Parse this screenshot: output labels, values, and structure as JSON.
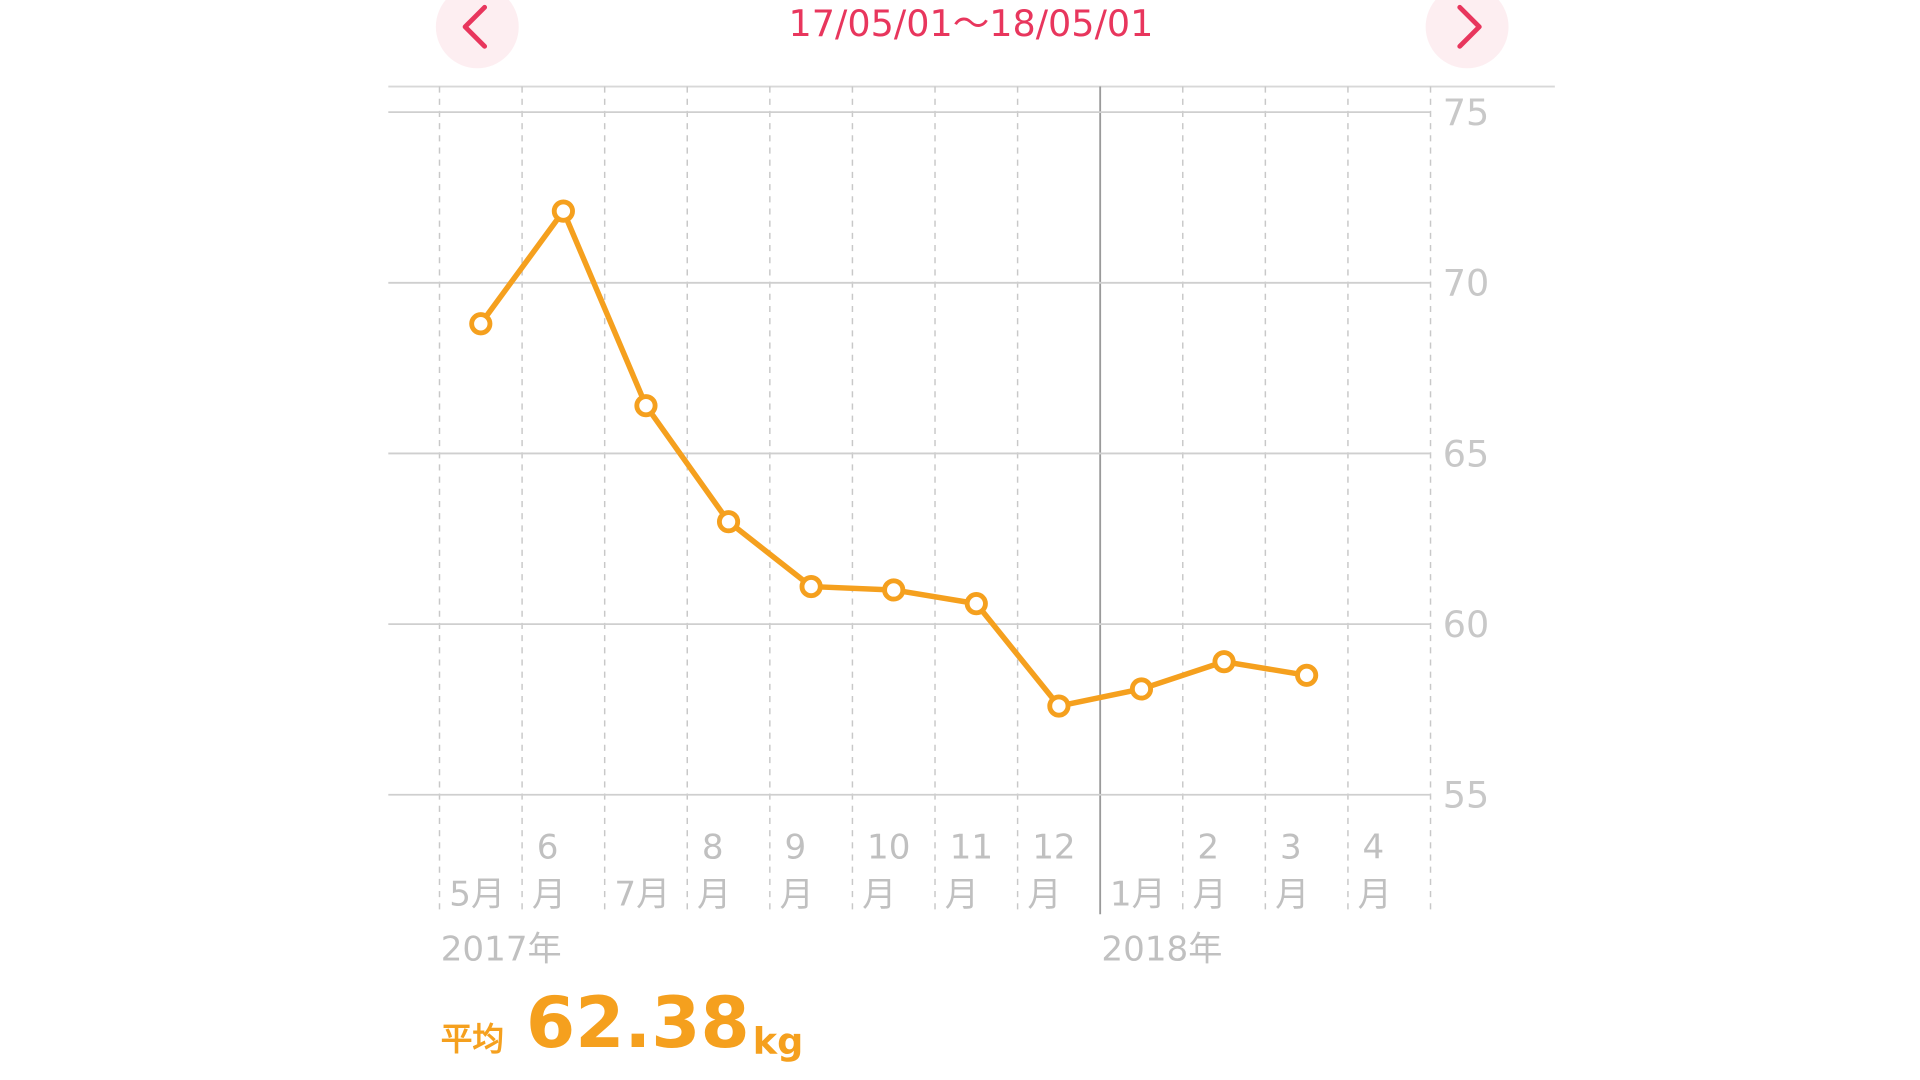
{
  "header": {
    "date_range": "17/05/01〜18/05/01"
  },
  "chart_data": {
    "type": "line",
    "categories": [
      "5月",
      "6月",
      "7月",
      "8月",
      "9月",
      "10月",
      "11月",
      "12月",
      "1月",
      "2月",
      "3月",
      "4月"
    ],
    "series": [
      {
        "color": "#f5a01e",
        "values": [
          68.8,
          72.1,
          66.4,
          63.0,
          61.1,
          61.0,
          60.6,
          57.6,
          58.1,
          58.9,
          58.5,
          null
        ]
      }
    ],
    "ylim": [
      55,
      75
    ],
    "yticks": [
      55,
      60,
      65,
      70,
      75
    ],
    "grid": true,
    "year_labels": [
      "2017年",
      "2018年"
    ]
  },
  "summary": {
    "label": "平均",
    "value": "62.38",
    "unit": "kg"
  }
}
